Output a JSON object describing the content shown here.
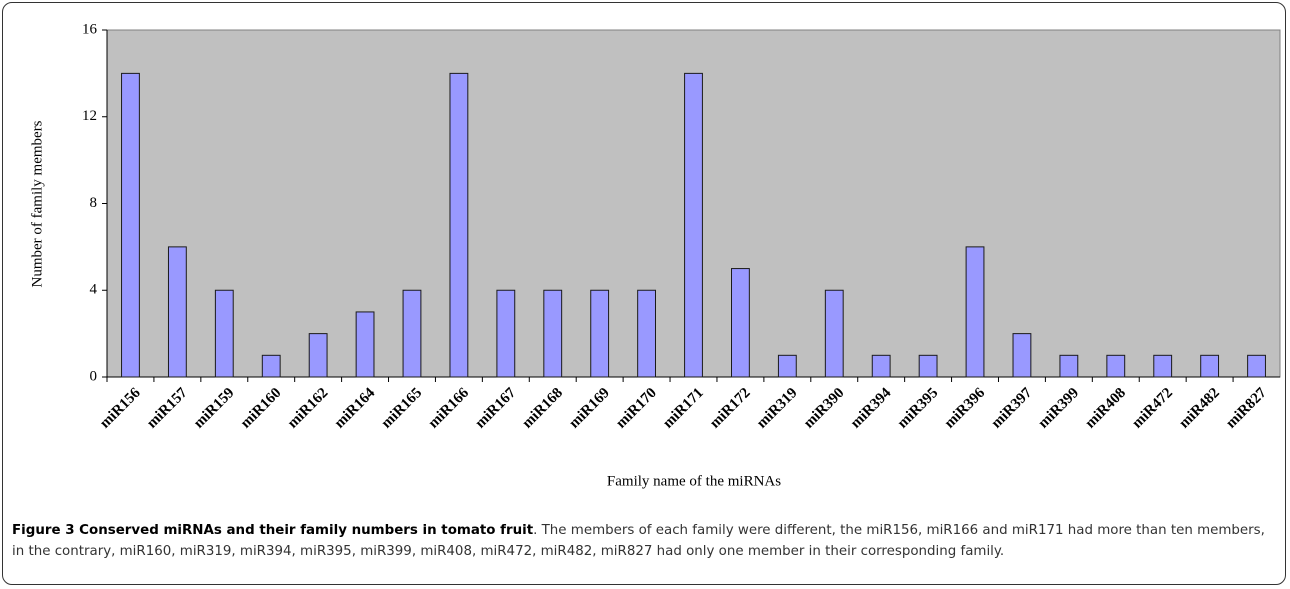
{
  "chart_data": {
    "type": "bar",
    "xlabel": "Family name of the miRNAs",
    "ylabel": "Number of family members",
    "categories": [
      "miR156",
      "miR157",
      "miR159",
      "miR160",
      "miR162",
      "miR164",
      "miR165",
      "miR166",
      "miR167",
      "miR168",
      "miR169",
      "miR170",
      "miR171",
      "miR172",
      "miR319",
      "miR390",
      "miR394",
      "miR395",
      "miR396",
      "miR397",
      "miR399",
      "miR408",
      "miR472",
      "miR482",
      "miR827"
    ],
    "values": [
      14,
      6,
      4,
      1,
      2,
      3,
      4,
      14,
      4,
      4,
      4,
      4,
      14,
      5,
      1,
      4,
      1,
      1,
      6,
      2,
      1,
      1,
      1,
      1,
      1
    ],
    "color": "#9999ff",
    "ylim": [
      0,
      16
    ],
    "yticks": [
      0,
      4,
      8,
      12,
      16
    ],
    "grid": false
  },
  "caption": {
    "title": "Figure 3 Conserved miRNAs and their family numbers in tomato fruit",
    "text": ". The members of each family were different, the miR156, miR166 and miR171 had more than ten members, in the contrary, miR160, miR319, miR394, miR395, miR399, miR408, miR472, miR482, miR827 had only one member in their corresponding family."
  }
}
